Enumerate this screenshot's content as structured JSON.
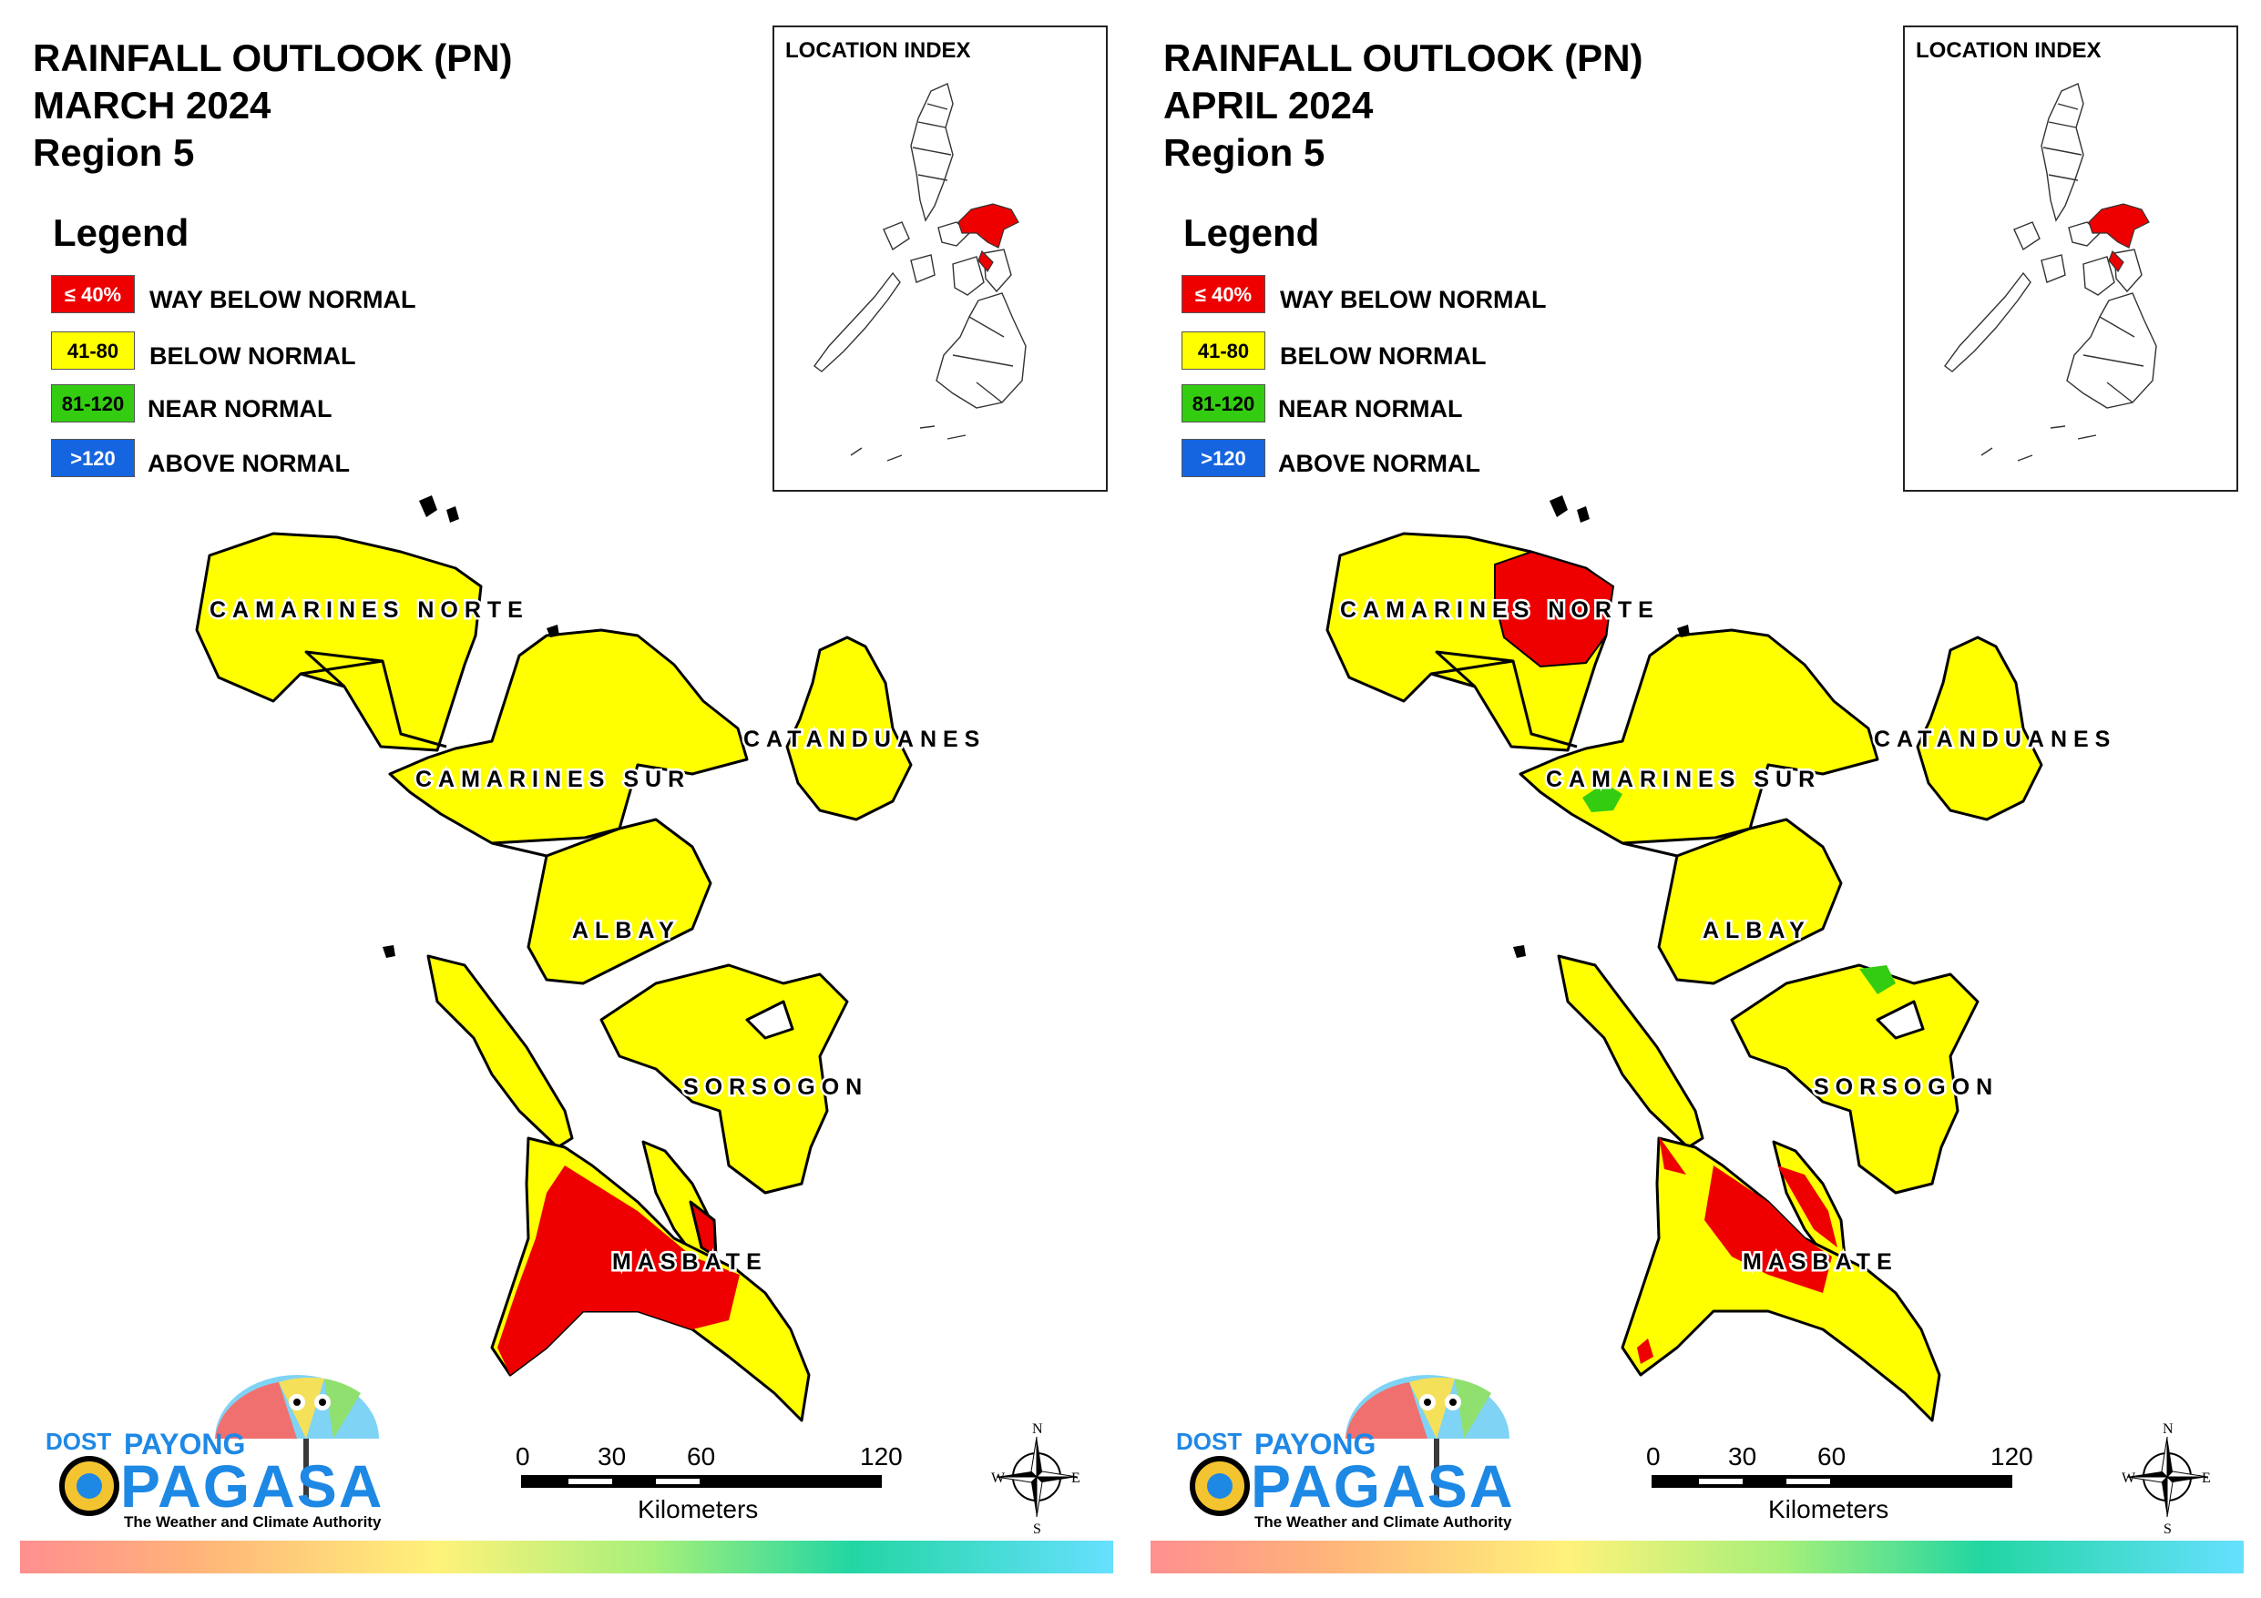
{
  "panels": [
    {
      "title_line1": "RAINFALL OUTLOOK (PN)",
      "title_line2": "MARCH 2024",
      "title_line3": "Region 5",
      "camarines_norte_fill": "yellow",
      "masbate_fill": "mostly red"
    },
    {
      "title_line1": "RAINFALL OUTLOOK (PN)",
      "title_line2": "APRIL 2024",
      "title_line3": "Region 5",
      "camarines_norte_fill": "yellow with red patch",
      "masbate_fill": "red center, yellow edges"
    }
  ],
  "legend": {
    "heading": "Legend",
    "items": [
      {
        "range": "≤ 40%",
        "label": "WAY BELOW NORMAL",
        "color": "#ee0000"
      },
      {
        "range": "41-80",
        "label": "BELOW NORMAL",
        "color": "#ffff00"
      },
      {
        "range": "81-120",
        "label": "NEAR NORMAL",
        "color": "#33cc11"
      },
      {
        "range": ">120",
        "label": "ABOVE NORMAL",
        "color": "#1565e0"
      }
    ]
  },
  "inset": {
    "title": "LOCATION INDEX"
  },
  "provinces": {
    "camarines_norte": "CAMARINES NORTE",
    "camarines_sur": "CAMARINES SUR",
    "catanduanes": "CATANDUANES",
    "albay": "ALBAY",
    "sorsogon": "SORSOGON",
    "masbate": "MASBATE"
  },
  "scale": {
    "ticks": [
      "0",
      "30",
      "60",
      "120"
    ],
    "unit": "Kilometers"
  },
  "compass": {
    "n": "N",
    "s": "S",
    "e": "E",
    "w": "W"
  },
  "logo": {
    "dost": "DOST",
    "payong": "PAYONG",
    "pagasa": "PAGASA",
    "tagline": "The Weather and Climate Authority"
  },
  "colors": {
    "red": "#ee0000",
    "yellow": "#ffff00",
    "green": "#33cc11",
    "blue": "#1565e0",
    "brand_blue": "#1e88e5"
  }
}
